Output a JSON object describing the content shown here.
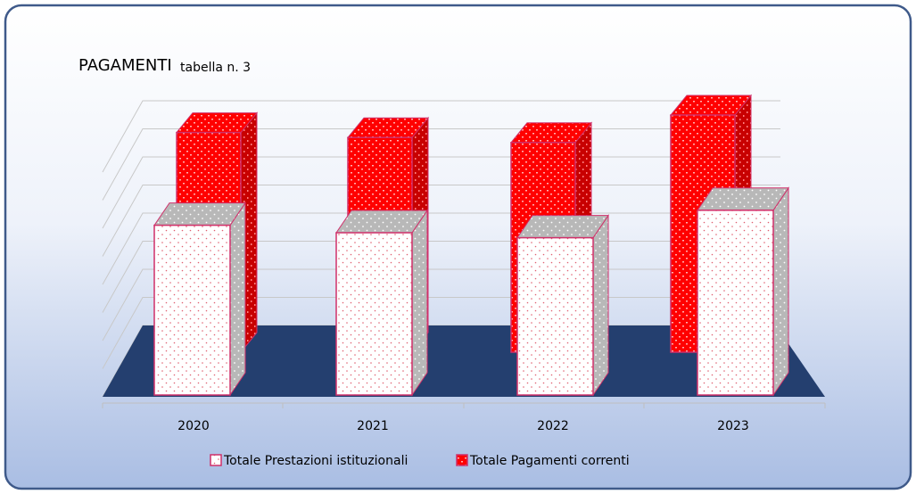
{
  "chart_data": {
    "type": "bar3d",
    "title": "PAGAMENTI",
    "subtitle": "tabella n. 3",
    "categories": [
      "2020",
      "2021",
      "2022",
      "2023"
    ],
    "series": [
      {
        "name": "Totale Prestazioni istituzionali",
        "color": "#ffffff",
        "values": [
          6.8,
          6.5,
          6.3,
          7.4
        ]
      },
      {
        "name": "Totale Pagamenti correnti",
        "color": "#ff0000",
        "values": [
          8.8,
          8.6,
          8.4,
          9.5
        ]
      }
    ],
    "ylim": [
      0,
      10
    ],
    "grid": true,
    "legend": "bottom"
  }
}
